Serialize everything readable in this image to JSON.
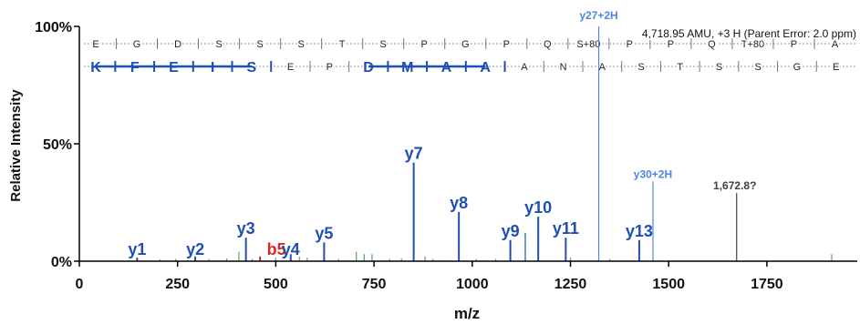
{
  "chart_data": {
    "type": "bar",
    "xlabel": "m/z",
    "ylabel": "Relative Intensity",
    "xlim": [
      0,
      1980
    ],
    "ylim": [
      0,
      100
    ],
    "x_ticks": [
      0,
      250,
      500,
      750,
      1000,
      1250,
      1500,
      1750
    ],
    "y_ticks": [
      {
        "value": 0,
        "label": "0%"
      },
      {
        "value": 50,
        "label": "50%"
      },
      {
        "value": 100,
        "label": "100%"
      }
    ],
    "grid": false,
    "parent_info": "4,718.95 AMU, +3 H (Parent Error: 2.0 ppm)",
    "colors": {
      "y_ion": "#1f4fb3",
      "y_multi": "#4f86e0",
      "b_ion": "#d62a1e",
      "noise": "#8c8c8c",
      "neutral": "#4caf50",
      "unassigned": "#404040"
    },
    "sequence_rows": [
      {
        "residues": [
          "E",
          "G",
          "D",
          "S",
          "S",
          "S",
          "T",
          "S",
          "P",
          "G",
          "P",
          "Q",
          "S+80",
          "P",
          "P",
          "Q",
          "T+80",
          "P",
          "A"
        ],
        "highlighted": []
      },
      {
        "residues": [
          "K",
          "F",
          "E",
          "I",
          "S",
          "E",
          "P",
          "D",
          "M",
          "A",
          "A",
          "A",
          "N",
          "A",
          "S",
          "T",
          "S",
          "S",
          "G",
          "E"
        ],
        "highlighted": [
          0,
          1,
          2,
          3,
          4,
          7,
          8,
          9,
          10
        ]
      }
    ],
    "peaks": [
      {
        "mz": 147,
        "intensity": 1.5,
        "label": "y1",
        "type": "y"
      },
      {
        "mz": 295,
        "intensity": 2,
        "label": "y2",
        "type": "y"
      },
      {
        "mz": 424,
        "intensity": 10,
        "label": "y3",
        "type": "y"
      },
      {
        "mz": 460,
        "intensity": 2,
        "label": "b5",
        "type": "b"
      },
      {
        "mz": 538,
        "intensity": 3,
        "label": "y4",
        "type": "y"
      },
      {
        "mz": 623,
        "intensity": 8,
        "label": "y5",
        "type": "y"
      },
      {
        "mz": 851,
        "intensity": 42,
        "label": "y7",
        "type": "y"
      },
      {
        "mz": 966,
        "intensity": 21,
        "label": "y8",
        "type": "y"
      },
      {
        "mz": 1097,
        "intensity": 9,
        "label": "y9",
        "type": "y"
      },
      {
        "mz": 1168,
        "intensity": 19,
        "label": "y10",
        "type": "y"
      },
      {
        "mz": 1238,
        "intensity": 10,
        "label": "y11",
        "type": "y"
      },
      {
        "mz": 1322,
        "intensity": 100,
        "label": "y27+2H",
        "type": "y2"
      },
      {
        "mz": 1425,
        "intensity": 9,
        "label": "y13",
        "type": "y"
      },
      {
        "mz": 1460,
        "intensity": 34,
        "label": "y30+2H",
        "type": "y2"
      },
      {
        "mz": 1673,
        "intensity": 29,
        "label": "1,672.8?",
        "type": "other"
      },
      {
        "mz": 1135,
        "intensity": 12,
        "label": "",
        "type": "y"
      },
      {
        "mz": 406,
        "intensity": 4,
        "label": "",
        "type": "neutral"
      },
      {
        "mz": 705,
        "intensity": 4,
        "label": "",
        "type": "neutral"
      },
      {
        "mz": 725,
        "intensity": 3,
        "label": "",
        "type": "neutral"
      },
      {
        "mz": 745,
        "intensity": 3,
        "label": "",
        "type": "neutral"
      },
      {
        "mz": 1915,
        "intensity": 3,
        "label": "",
        "type": "neutral"
      },
      {
        "mz": 205,
        "intensity": 0.8,
        "label": "",
        "type": "noise"
      },
      {
        "mz": 245,
        "intensity": 1,
        "label": "",
        "type": "noise"
      },
      {
        "mz": 330,
        "intensity": 1,
        "label": "",
        "type": "noise"
      },
      {
        "mz": 375,
        "intensity": 1.2,
        "label": "",
        "type": "noise"
      },
      {
        "mz": 440,
        "intensity": 1,
        "label": "",
        "type": "noise"
      },
      {
        "mz": 500,
        "intensity": 1.5,
        "label": "",
        "type": "noise"
      },
      {
        "mz": 560,
        "intensity": 2,
        "label": "",
        "type": "noise"
      },
      {
        "mz": 580,
        "intensity": 1.5,
        "label": "",
        "type": "noise"
      },
      {
        "mz": 660,
        "intensity": 1,
        "label": "",
        "type": "noise"
      },
      {
        "mz": 790,
        "intensity": 1,
        "label": "",
        "type": "noise"
      },
      {
        "mz": 820,
        "intensity": 1.2,
        "label": "",
        "type": "noise"
      },
      {
        "mz": 880,
        "intensity": 2,
        "label": "",
        "type": "noise"
      },
      {
        "mz": 900,
        "intensity": 1,
        "label": "",
        "type": "noise"
      },
      {
        "mz": 1010,
        "intensity": 1,
        "label": "",
        "type": "noise"
      },
      {
        "mz": 1060,
        "intensity": 1,
        "label": "",
        "type": "noise"
      },
      {
        "mz": 1250,
        "intensity": 1.5,
        "label": "",
        "type": "noise"
      },
      {
        "mz": 1350,
        "intensity": 1,
        "label": "",
        "type": "noise"
      }
    ]
  }
}
